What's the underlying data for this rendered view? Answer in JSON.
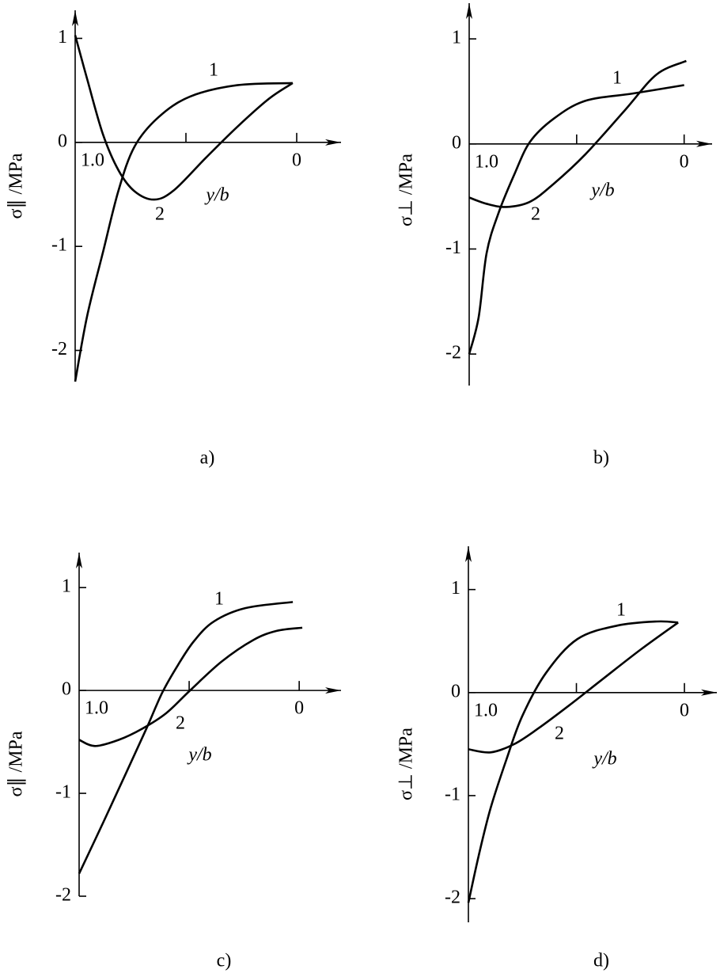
{
  "chart_data": [
    {
      "type": "line",
      "panel_label": "a)",
      "xlabel": "y/b",
      "ylabel": "σ∥ /MPa",
      "xlim": [
        1.0,
        -0.2
      ],
      "ylim": [
        -2.3,
        1.27
      ],
      "xticks": [
        {
          "value": 1.0,
          "label": "1.0"
        },
        {
          "value": 0.5,
          "label": null
        },
        0
      ],
      "yticks": [
        -2,
        -1,
        0,
        1
      ],
      "series": [
        {
          "name": "1",
          "color": "#000000",
          "x": [
            1.0,
            0.946,
            0.875,
            0.804,
            0.732,
            0.625,
            0.482,
            0.268,
            0.018
          ],
          "values": [
            -2.3,
            -1.67,
            -1.06,
            -0.46,
            -0.04,
            0.24,
            0.44,
            0.55,
            0.57
          ]
        },
        {
          "name": "2",
          "color": "#000000",
          "x": [
            1.0,
            0.946,
            0.875,
            0.804,
            0.732,
            0.643,
            0.554,
            0.411,
            0.268,
            0.125,
            0.018
          ],
          "values": [
            1.03,
            0.61,
            0.08,
            -0.27,
            -0.47,
            -0.55,
            -0.46,
            -0.15,
            0.15,
            0.42,
            0.57
          ]
        }
      ]
    },
    {
      "type": "line",
      "panel_label": "b)",
      "xlabel": "y/b",
      "ylabel": "σ⊥ /MPa",
      "xlim": [
        1.0,
        -0.13
      ],
      "ylim": [
        -2.3,
        1.34
      ],
      "xticks": [
        {
          "value": 1.0,
          "label": "1.0"
        },
        {
          "value": 0.5,
          "label": null
        },
        0
      ],
      "yticks": [
        -2,
        -1,
        0,
        1
      ],
      "series": [
        {
          "name": "1",
          "color": "#000000",
          "x": [
            1.0,
            0.956,
            0.919,
            0.864,
            0.79,
            0.717,
            0.607,
            0.46,
            0.239,
            0.0
          ],
          "values": [
            -2.0,
            -1.65,
            -1.04,
            -0.66,
            -0.29,
            0.02,
            0.24,
            0.41,
            0.48,
            0.56
          ]
        },
        {
          "name": "2",
          "color": "#000000",
          "x": [
            1.0,
            0.919,
            0.827,
            0.717,
            0.607,
            0.46,
            0.276,
            0.129,
            -0.01
          ],
          "values": [
            -0.51,
            -0.57,
            -0.6,
            -0.55,
            -0.38,
            -0.1,
            0.32,
            0.66,
            0.79
          ]
        }
      ]
    },
    {
      "type": "line",
      "panel_label": "c)",
      "xlabel": "y/b",
      "ylabel": "σ∥ /MPa",
      "xlim": [
        1.0,
        -0.19
      ],
      "ylim": [
        -2.0,
        1.34
      ],
      "xticks": [
        {
          "value": 1.0,
          "label": "1.0"
        },
        {
          "value": 0.5,
          "label": null
        },
        0
      ],
      "yticks": [
        -2,
        -1,
        0,
        1
      ],
      "series": [
        {
          "name": "1",
          "color": "#000000",
          "x": [
            1.0,
            0.892,
            0.784,
            0.694,
            0.622,
            0.55,
            0.478,
            0.388,
            0.245,
            0.029
          ],
          "values": [
            -1.78,
            -1.29,
            -0.79,
            -0.37,
            -0.02,
            0.25,
            0.48,
            0.67,
            0.8,
            0.86
          ]
        },
        {
          "name": "2",
          "color": "#000000",
          "x": [
            1.0,
            0.928,
            0.82,
            0.712,
            0.604,
            0.496,
            0.353,
            0.209,
            0.101,
            -0.014
          ],
          "values": [
            -0.48,
            -0.54,
            -0.48,
            -0.37,
            -0.22,
            0.0,
            0.28,
            0.49,
            0.58,
            0.61
          ]
        }
      ]
    },
    {
      "type": "line",
      "panel_label": "d)",
      "xlabel": "y/b",
      "ylabel": "σ⊥ /MPa",
      "xlim": [
        1.0,
        -0.15
      ],
      "ylim": [
        -2.23,
        1.42
      ],
      "xticks": [
        {
          "value": 1.0,
          "label": "1.0"
        },
        {
          "value": 0.5,
          "label": null
        },
        0
      ],
      "yticks": [
        -2,
        -1,
        0,
        1
      ],
      "series": [
        {
          "name": "1",
          "color": "#000000",
          "x": [
            1.0,
            0.952,
            0.897,
            0.824,
            0.751,
            0.641,
            0.495,
            0.311,
            0.128,
            0.029
          ],
          "values": [
            -2.04,
            -1.58,
            -1.12,
            -0.65,
            -0.23,
            0.19,
            0.52,
            0.65,
            0.69,
            0.68
          ]
        },
        {
          "name": "2",
          "color": "#000000",
          "x": [
            1.0,
            0.897,
            0.788,
            0.678,
            0.531,
            0.385,
            0.201,
            0.029
          ],
          "values": [
            -0.55,
            -0.58,
            -0.5,
            -0.35,
            -0.12,
            0.12,
            0.42,
            0.68
          ]
        }
      ]
    }
  ]
}
